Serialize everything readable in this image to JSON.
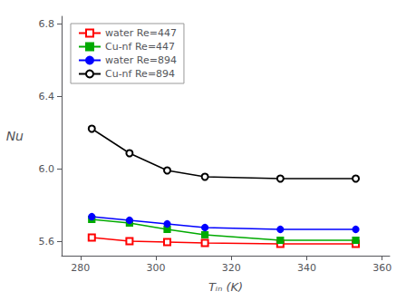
{
  "chart_data": {
    "type": "line",
    "x": [
      283,
      293,
      303,
      313,
      333,
      353
    ],
    "series": [
      {
        "name": "water Re=447",
        "color": "#ff0000",
        "marker": "square_open",
        "values": [
          5.62,
          5.6,
          5.595,
          5.59,
          5.585,
          5.585
        ]
      },
      {
        "name": "Cu-nf Re=447",
        "color": "#00aa00",
        "marker": "square",
        "values": [
          5.72,
          5.7,
          5.665,
          5.635,
          5.605,
          5.605
        ]
      },
      {
        "name": "water Re=894",
        "color": "#0000ff",
        "marker": "circle",
        "values": [
          5.735,
          5.715,
          5.695,
          5.675,
          5.665,
          5.665
        ]
      },
      {
        "name": "Cu-nf Re=894",
        "color": "#000000",
        "marker": "circle_open",
        "values": [
          6.22,
          6.085,
          5.99,
          5.955,
          5.945,
          5.945
        ]
      }
    ],
    "xlabel": "Tᵢₙ (K)",
    "ylabel": "Nu",
    "xlim": [
      275,
      362
    ],
    "ylim": [
      5.52,
      6.84
    ],
    "xticks": [
      280,
      300,
      320,
      340,
      360
    ],
    "yticks": [
      5.6,
      {
        "value": 6.0,
        "label": "6.0"
      },
      6.4,
      6.8
    ],
    "grid": false,
    "legend": "upper left"
  }
}
